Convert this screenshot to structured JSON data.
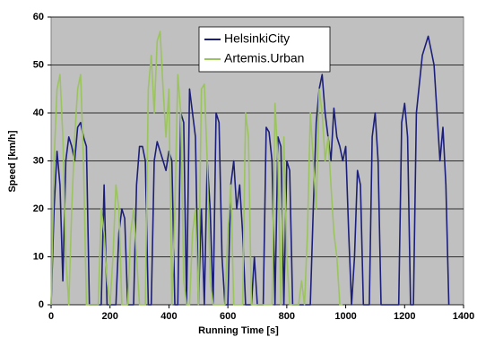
{
  "chart_data": {
    "type": "line",
    "xlabel": "Running Time [s]",
    "ylabel": "Speed [km/h]",
    "x": [
      0,
      10,
      20,
      30,
      40,
      50,
      60,
      70,
      80,
      90,
      100,
      110,
      120,
      130,
      140,
      150,
      160,
      170,
      180,
      190,
      200,
      210,
      220,
      230,
      240,
      250,
      260,
      270,
      280,
      290,
      300,
      310,
      320,
      330,
      340,
      350,
      360,
      370,
      380,
      390,
      400,
      410,
      420,
      430,
      440,
      450,
      460,
      470,
      480,
      490,
      500,
      510,
      520,
      530,
      540,
      550,
      560,
      570,
      580,
      590,
      600,
      610,
      620,
      630,
      640,
      650,
      660,
      670,
      680,
      690,
      700,
      710,
      720,
      730,
      740,
      750,
      760,
      770,
      780,
      790,
      800,
      810,
      820,
      830,
      840,
      850,
      860,
      870,
      880,
      890,
      900,
      910,
      920,
      930,
      940,
      950,
      960,
      970,
      980,
      990,
      1000,
      1010,
      1020,
      1030,
      1040,
      1050,
      1060,
      1070,
      1080,
      1090,
      1100,
      1110,
      1120,
      1130,
      1140,
      1150,
      1160,
      1170,
      1180,
      1190,
      1200,
      1210,
      1220,
      1230,
      1240,
      1250,
      1260,
      1270,
      1280,
      1290,
      1300,
      1310,
      1320,
      1330,
      1340,
      1350
    ],
    "series": [
      {
        "name": "HelsinkiCity",
        "color": "#1c1f7a",
        "values": [
          0,
          20,
          32,
          25,
          5,
          30,
          35,
          33,
          30,
          37,
          38,
          35,
          33,
          0,
          0,
          0,
          0,
          0,
          25,
          0,
          0,
          0,
          0,
          15,
          20,
          18,
          0,
          0,
          0,
          25,
          33,
          33,
          30,
          0,
          0,
          30,
          34,
          32,
          30,
          28,
          32,
          30,
          0,
          0,
          40,
          38,
          0,
          45,
          40,
          35,
          0,
          20,
          0,
          30,
          20,
          0,
          40,
          38,
          10,
          0,
          0,
          25,
          30,
          20,
          25,
          15,
          0,
          0,
          0,
          10,
          0,
          0,
          0,
          37,
          36,
          30,
          0,
          35,
          33,
          0,
          30,
          28,
          0,
          0,
          0,
          0,
          0,
          0,
          0,
          20,
          38,
          45,
          48,
          40,
          35,
          30,
          41,
          35,
          33,
          30,
          33,
          15,
          0,
          10,
          28,
          25,
          0,
          0,
          0,
          35,
          40,
          30,
          0,
          0,
          0,
          0,
          0,
          0,
          0,
          38,
          42,
          35,
          0,
          0,
          40,
          46,
          52,
          54,
          56,
          53,
          50,
          40,
          30,
          37,
          25,
          0
        ]
      },
      {
        "name": "Artemis.Urban",
        "color": "#9cc45e",
        "values": [
          0,
          30,
          45,
          48,
          35,
          10,
          0,
          20,
          35,
          45,
          48,
          30,
          0,
          0,
          0,
          0,
          0,
          20,
          15,
          5,
          0,
          10,
          25,
          20,
          0,
          0,
          0,
          15,
          20,
          10,
          0,
          0,
          0,
          45,
          52,
          40,
          55,
          57,
          45,
          35,
          45,
          0,
          20,
          48,
          40,
          5,
          0,
          0,
          15,
          20,
          0,
          45,
          46,
          30,
          5,
          0,
          0,
          0,
          0,
          0,
          15,
          25,
          0,
          0,
          0,
          0,
          40,
          35,
          0,
          0,
          0,
          0,
          0,
          0,
          0,
          0,
          42,
          30,
          0,
          35,
          10,
          0,
          0,
          0,
          0,
          5,
          0,
          15,
          40,
          30,
          20,
          45,
          40,
          30,
          35,
          25,
          15,
          10,
          0,
          0,
          null,
          null,
          null,
          null,
          null,
          null,
          null,
          null,
          null,
          null,
          null,
          null,
          null,
          null,
          null,
          null,
          null,
          null,
          null,
          null,
          null,
          null,
          null,
          null,
          null,
          null,
          null,
          null,
          null,
          null,
          null,
          null,
          null,
          null,
          null,
          null
        ]
      }
    ],
    "xlim": [
      0,
      1400
    ],
    "xticks": [
      0,
      200,
      400,
      600,
      800,
      1000,
      1200,
      1400
    ],
    "ylim": [
      0,
      60
    ],
    "yticks": [
      0,
      10,
      20,
      30,
      40,
      50,
      60
    ],
    "grid": true,
    "legend": "top"
  }
}
